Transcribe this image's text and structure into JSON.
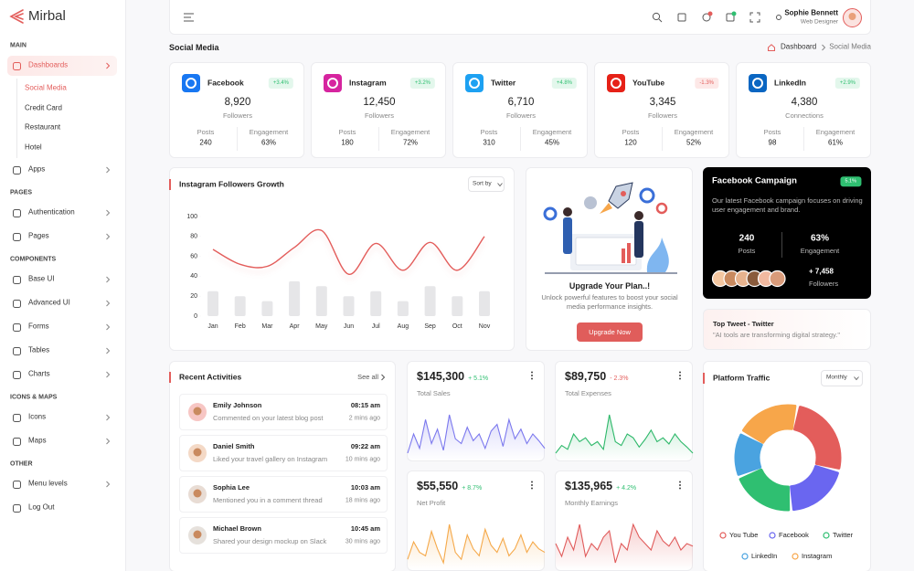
{
  "sidebar": {
    "brand": "Mirbal",
    "sections": [
      {
        "title": "MAIN",
        "items": [
          {
            "label": "Dashboards",
            "active": true,
            "children": [
              "Social Media",
              "Credit Card",
              "Restaurant",
              "Hotel"
            ]
          },
          {
            "label": "Apps"
          }
        ]
      },
      {
        "title": "PAGES",
        "items": [
          {
            "label": "Authentication"
          },
          {
            "label": "Pages"
          }
        ]
      },
      {
        "title": "COMPONENTS",
        "items": [
          {
            "label": "Base UI"
          },
          {
            "label": "Advanced UI"
          },
          {
            "label": "Forms"
          },
          {
            "label": "Tables"
          },
          {
            "label": "Charts"
          }
        ]
      },
      {
        "title": "ICONS & MAPS",
        "items": [
          {
            "label": "Icons"
          },
          {
            "label": "Maps"
          }
        ]
      },
      {
        "title": "OTHER",
        "items": [
          {
            "label": "Menu levels"
          },
          {
            "label": "Log Out"
          }
        ]
      }
    ]
  },
  "header": {
    "user": {
      "name": "Sophie Bennett",
      "role": "Web Designer"
    }
  },
  "page": {
    "title": "Social Media",
    "breadcrumb": [
      "Dashboard",
      "Social Media"
    ]
  },
  "stats": [
    {
      "name": "Facebook",
      "change": "+3.4%",
      "value": "8,920",
      "unit": "Followers",
      "posts_label": "Posts",
      "posts": "240",
      "engagement_label": "Engagement",
      "engagement": "63%"
    },
    {
      "name": "Instagram",
      "change": "+3.2%",
      "value": "12,450",
      "unit": "Followers",
      "posts_label": "Posts",
      "posts": "180",
      "engagement_label": "Engagement",
      "engagement": "72%"
    },
    {
      "name": "Twitter",
      "change": "+4.8%",
      "value": "6,710",
      "unit": "Followers",
      "posts_label": "Posts",
      "posts": "310",
      "engagement_label": "Engagement",
      "engagement": "45%"
    },
    {
      "name": "YouTube",
      "change": "-1.3%",
      "value": "3,345",
      "unit": "Followers",
      "posts_label": "Posts",
      "posts": "120",
      "engagement_label": "Engagement",
      "engagement": "52%"
    },
    {
      "name": "LinkedIn",
      "change": "+2.9%",
      "value": "4,380",
      "unit": "Connections",
      "posts_label": "Posts",
      "posts": "98",
      "engagement_label": "Engagement",
      "engagement": "61%"
    }
  ],
  "upgrade": {
    "title": "Upgrade Your Plan..!",
    "text": "Unlock powerful features to boost your social media performance insights.",
    "button": "Upgrade Now"
  },
  "campaign": {
    "title": "Facebook Campaign",
    "badge": "5.1%",
    "text": "Our latest Facebook campaign focuses on driving user engagement and brand.",
    "posts": "240",
    "posts_label": "Posts",
    "engagement": "63%",
    "engagement_label": "Engagement",
    "followers": "+ 7,458",
    "followers_label": "Followers"
  },
  "top_tweet": {
    "title": "Top Tweet - Twitter",
    "text": "\"AI tools are transforming digital strategy.\""
  },
  "activities": {
    "title": "Recent Activities",
    "see_all": "See all",
    "items": [
      {
        "name": "Emily Johnson",
        "text": "Commented on your latest blog post",
        "time": "08:15 am",
        "ago": "2 mins ago"
      },
      {
        "name": "Daniel Smith",
        "text": "Liked your travel gallery on Instagram",
        "time": "09:22 am",
        "ago": "10 mins ago"
      },
      {
        "name": "Sophia Lee",
        "text": "Mentioned you in a comment thread",
        "time": "10:03 am",
        "ago": "18 mins ago"
      },
      {
        "name": "Michael Brown",
        "text": "Shared your design mockup on Slack",
        "time": "10:45 am",
        "ago": "30 mins ago"
      }
    ]
  },
  "chart_data": [
    {
      "type": "combo",
      "title": "Instagram Followers Growth",
      "sort_label": "Sort by",
      "categories": [
        "Jan",
        "Feb",
        "Mar",
        "Apr",
        "May",
        "Jun",
        "Jul",
        "Aug",
        "Sep",
        "Oct",
        "Nov"
      ],
      "series": [
        {
          "type": "line",
          "color": "#e35d5b",
          "values": [
            67,
            52,
            50,
            69,
            86,
            42,
            73,
            46,
            74,
            46,
            80
          ]
        },
        {
          "type": "bar",
          "color": "#e6e6e8",
          "values": [
            25,
            20,
            15,
            35,
            30,
            20,
            25,
            15,
            30,
            20,
            25
          ]
        }
      ],
      "ylim": [
        0,
        100
      ],
      "yticks": [
        0,
        20,
        40,
        60,
        80,
        100
      ]
    },
    {
      "type": "sparkline",
      "value": "$145,300",
      "change": "+ 5.1%",
      "title": "Total Sales",
      "color": "#7b78ee",
      "values": [
        35,
        55,
        40,
        70,
        45,
        60,
        38,
        75,
        50,
        45,
        62,
        48,
        55,
        40,
        58,
        65,
        42,
        70,
        50,
        60,
        45,
        55,
        48,
        40
      ]
    },
    {
      "type": "sparkline",
      "value": "$89,750",
      "change": "- 2.3%",
      "title": "Total Expenses",
      "color": "#2db86a",
      "values": [
        30,
        40,
        35,
        55,
        45,
        50,
        40,
        45,
        35,
        80,
        45,
        40,
        55,
        50,
        38,
        48,
        60,
        45,
        50,
        42,
        55,
        45,
        38,
        30
      ]
    },
    {
      "type": "sparkline",
      "value": "$55,550",
      "change": "+ 8.7%",
      "title": "Net Profit",
      "color": "#f5a94a",
      "values": [
        35,
        60,
        45,
        40,
        75,
        50,
        30,
        85,
        45,
        35,
        70,
        50,
        40,
        78,
        55,
        45,
        65,
        40,
        50,
        70,
        45,
        60,
        50,
        45
      ]
    },
    {
      "type": "sparkline",
      "value": "$135,965",
      "change": "+ 4.2%",
      "title": "Monthly Earnings",
      "color": "#e05a5a",
      "values": [
        40,
        30,
        45,
        35,
        55,
        30,
        40,
        35,
        45,
        50,
        25,
        40,
        35,
        55,
        45,
        40,
        35,
        50,
        42,
        38,
        45,
        35,
        40,
        38
      ]
    },
    {
      "type": "donut",
      "title": "Platform Traffic",
      "period": "Monthly",
      "categories": [
        "You Tube",
        "Facebook",
        "Twitter",
        "LinkedIn",
        "Instagram"
      ],
      "values": [
        26,
        20,
        20,
        14,
        20
      ],
      "colors": [
        "#e35d5b",
        "#6a66f0",
        "#2fbf71",
        "#4aa3e0",
        "#f7a64a"
      ]
    }
  ]
}
